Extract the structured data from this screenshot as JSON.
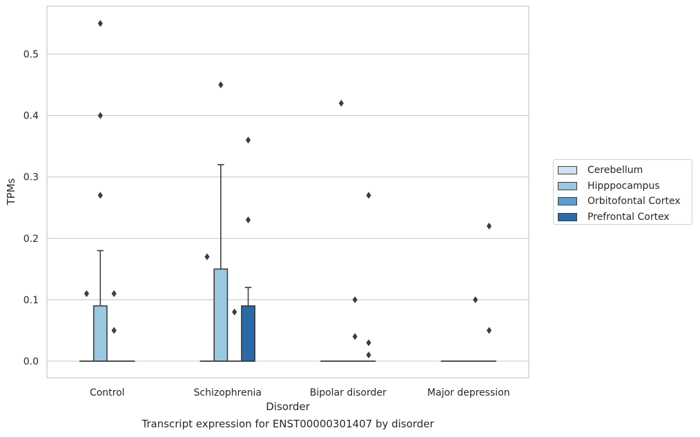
{
  "chart_data": {
    "type": "box",
    "x": {
      "label": "Disorder",
      "categories": [
        "Control",
        "Schizophrenia",
        "Bipolar disorder",
        "Major depression"
      ]
    },
    "y": {
      "label": "TPMs",
      "lim": [
        -0.027,
        0.578
      ],
      "ticks": [
        "0.0",
        "0.1",
        "0.2",
        "0.3",
        "0.4",
        "0.5"
      ]
    },
    "grid": "horizontal",
    "legend_position": "right",
    "series": [
      {
        "name": "Cerebellum",
        "color": "#d0e1f1",
        "boxes": [
          {
            "q1": 0,
            "median": 0,
            "q3": 0,
            "whisker_low": 0,
            "whisker_high": 0,
            "outliers": [
              0.11
            ]
          },
          {
            "q1": 0,
            "median": 0,
            "q3": 0,
            "whisker_low": 0,
            "whisker_high": 0,
            "outliers": [
              0.17
            ]
          },
          {
            "q1": 0,
            "median": 0,
            "q3": 0,
            "whisker_low": 0,
            "whisker_high": 0,
            "outliers": []
          },
          {
            "q1": 0,
            "median": 0,
            "q3": 0,
            "whisker_low": 0,
            "whisker_high": 0,
            "outliers": []
          }
        ]
      },
      {
        "name": "Hipppocampus",
        "color": "#9ac8e0",
        "boxes": [
          {
            "q1": 0,
            "median": 0,
            "q3": 0.09,
            "whisker_low": 0,
            "whisker_high": 0.18,
            "outliers": [
              0.27,
              0.4,
              0.55
            ]
          },
          {
            "q1": 0,
            "median": 0,
            "q3": 0.15,
            "whisker_low": 0,
            "whisker_high": 0.32,
            "outliers": [
              0.45
            ]
          },
          {
            "q1": 0,
            "median": 0,
            "q3": 0,
            "whisker_low": 0,
            "whisker_high": 0,
            "outliers": [
              0.42
            ]
          },
          {
            "q1": 0,
            "median": 0,
            "q3": 0,
            "whisker_low": 0,
            "whisker_high": 0,
            "outliers": []
          }
        ]
      },
      {
        "name": "Orbitofontal Cortex",
        "color": "#5a9fcd",
        "boxes": [
          {
            "q1": 0,
            "median": 0,
            "q3": 0,
            "whisker_low": 0,
            "whisker_high": 0,
            "outliers": [
              0.05,
              0.11
            ]
          },
          {
            "q1": 0,
            "median": 0,
            "q3": 0,
            "whisker_low": 0,
            "whisker_high": 0,
            "outliers": [
              0.08
            ]
          },
          {
            "q1": 0,
            "median": 0,
            "q3": 0,
            "whisker_low": 0,
            "whisker_high": 0,
            "outliers": [
              0.04,
              0.1
            ]
          },
          {
            "q1": 0,
            "median": 0,
            "q3": 0,
            "whisker_low": 0,
            "whisker_high": 0,
            "outliers": [
              0.1
            ]
          }
        ]
      },
      {
        "name": "Prefrontal Cortex",
        "color": "#2b6aa7",
        "boxes": [
          {
            "q1": 0,
            "median": 0,
            "q3": 0,
            "whisker_low": 0,
            "whisker_high": 0,
            "outliers": []
          },
          {
            "q1": 0,
            "median": 0,
            "q3": 0.09,
            "whisker_low": 0,
            "whisker_high": 0.12,
            "outliers": [
              0.23,
              0.36
            ]
          },
          {
            "q1": 0,
            "median": 0,
            "q3": 0,
            "whisker_low": 0,
            "whisker_high": 0,
            "outliers": [
              0.01,
              0.03,
              0.27
            ]
          },
          {
            "q1": 0,
            "median": 0,
            "q3": 0,
            "whisker_low": 0,
            "whisker_high": 0,
            "outliers": [
              0.05,
              0.22
            ]
          }
        ]
      }
    ],
    "caption": "Transcript expression for ENST00000301407 by disorder"
  }
}
